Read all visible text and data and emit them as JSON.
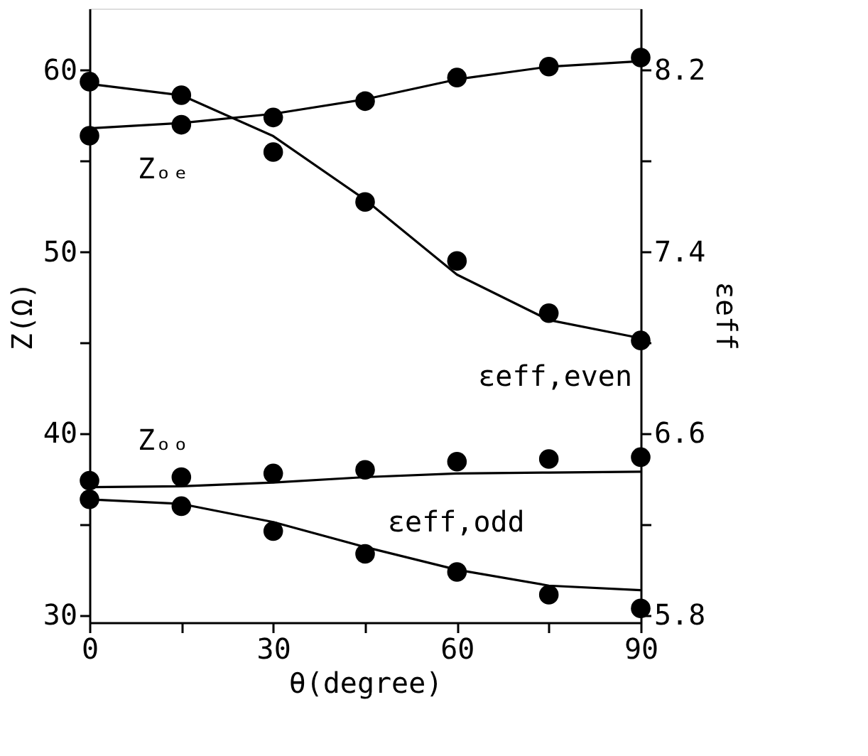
{
  "chart_data": {
    "type": "scatter",
    "xlabel": "θ(degree)",
    "ylabel": "Z(Ω)",
    "y2label": "εeff",
    "xlim": [
      0,
      90
    ],
    "xticks": [
      0,
      {
        "value": 15,
        "label": null
      },
      30,
      {
        "value": 45,
        "label": null
      },
      60,
      {
        "value": 75,
        "label": null
      },
      90
    ],
    "ylim": [
      29.6,
      63.4
    ],
    "yticks": [
      30,
      {
        "value": 35,
        "label": null
      },
      40,
      {
        "value": 45,
        "label": null
      },
      50,
      {
        "value": 55,
        "label": null
      },
      60
    ],
    "y2lim": [
      5.768,
      8.472
    ],
    "y2ticks": [
      5.8,
      {
        "value": 6.2,
        "label": null
      },
      6.6,
      {
        "value": 7.0,
        "label": null
      },
      7.4,
      {
        "value": 7.8,
        "label": null
      },
      8.2
    ],
    "grid": false,
    "series": [
      {
        "name": "Zₒₑ",
        "marker": "circle",
        "color": "#000000",
        "x": [
          0,
          15,
          30,
          45,
          60,
          75,
          90
        ],
        "values": [
          56.4,
          57.0,
          57.4,
          58.3,
          59.6,
          60.2,
          60.7
        ]
      },
      {
        "type": "line",
        "marker": "none",
        "color": "#000000",
        "line_style": "solid",
        "x": [
          0,
          15,
          30,
          45,
          60,
          75,
          90
        ],
        "values": [
          56.8,
          57.1,
          57.6,
          58.4,
          59.5,
          60.2,
          60.5
        ]
      },
      {
        "name": "εeff,even",
        "marker": "circle",
        "color": "#000000",
        "axis": "y2",
        "x": [
          0,
          15,
          30,
          45,
          60,
          75,
          90
        ],
        "values": [
          8.15,
          8.09,
          7.84,
          7.62,
          7.36,
          7.13,
          7.01
        ]
      },
      {
        "type": "line",
        "marker": "none",
        "color": "#000000",
        "axis": "y2",
        "line_style": "solid",
        "x": [
          0,
          15,
          30,
          45,
          60,
          75,
          90
        ],
        "values": [
          8.14,
          8.09,
          7.91,
          7.63,
          7.3,
          7.1,
          7.02
        ]
      },
      {
        "name": "Zₒₒ",
        "marker": "circle",
        "color": "#000000",
        "x": [
          0,
          15,
          30,
          45,
          60,
          75,
          90
        ],
        "values": [
          37.4,
          37.6,
          37.8,
          38.0,
          38.45,
          38.6,
          38.7
        ]
      },
      {
        "type": "line",
        "marker": "none",
        "color": "#000000",
        "line_style": "solid",
        "x": [
          0,
          15,
          30,
          45,
          60,
          75,
          90
        ],
        "values": [
          37.05,
          37.1,
          37.3,
          37.6,
          37.8,
          37.85,
          37.9
        ]
      },
      {
        "name": "εeff,odd",
        "marker": "circle",
        "color": "#000000",
        "axis": "y2",
        "x": [
          0,
          15,
          30,
          45,
          60,
          75,
          90
        ],
        "values": [
          6.31,
          6.28,
          6.17,
          6.07,
          5.99,
          5.89,
          5.83
        ]
      },
      {
        "type": "line",
        "marker": "none",
        "color": "#000000",
        "axis": "y2",
        "line_style": "solid",
        "x": [
          0,
          15,
          30,
          45,
          60,
          75,
          90
        ],
        "values": [
          6.31,
          6.29,
          6.21,
          6.1,
          6.0,
          5.93,
          5.91
        ]
      }
    ]
  }
}
